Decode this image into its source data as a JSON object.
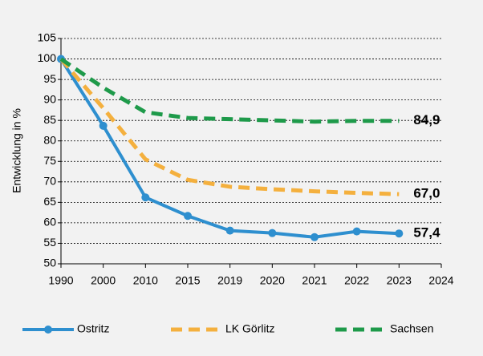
{
  "chart_data": {
    "type": "line",
    "y_label": "Entwicklung in %",
    "categories": [
      "1990",
      "2000",
      "2010",
      "2015",
      "2019",
      "2020",
      "2021",
      "2022",
      "2023",
      "2024"
    ],
    "series": [
      {
        "name": "Ostritz",
        "color": "#2e8fcf",
        "dash": "solid",
        "markers": true,
        "values": [
          100,
          83.7,
          66.2,
          61.7,
          58.1,
          57.5,
          56.5,
          57.9,
          57.4,
          null
        ],
        "value_labels": [
          null,
          null,
          null,
          null,
          null,
          null,
          null,
          null,
          "57,4",
          null
        ]
      },
      {
        "name": "LK Görlitz",
        "color": "#f4b03e",
        "dash": "dashed",
        "markers": false,
        "values": [
          100,
          88,
          75.5,
          70.5,
          68.8,
          68.2,
          67.7,
          67.3,
          67.0,
          null
        ],
        "value_labels": [
          null,
          null,
          null,
          null,
          null,
          null,
          null,
          null,
          "67,0",
          null
        ]
      },
      {
        "name": "Sachsen",
        "color": "#1e9a4a",
        "dash": "dashed",
        "markers": false,
        "values": [
          100,
          93,
          87,
          85.6,
          85.3,
          85.0,
          84.7,
          84.9,
          84.9,
          null
        ],
        "value_labels": [
          null,
          null,
          null,
          null,
          null,
          null,
          null,
          null,
          "84,9",
          null
        ]
      }
    ],
    "ylim": [
      50,
      105
    ],
    "yticks": [
      50,
      55,
      60,
      65,
      70,
      75,
      80,
      85,
      90,
      95,
      100,
      105
    ],
    "grid": true,
    "legend": "bottom"
  }
}
